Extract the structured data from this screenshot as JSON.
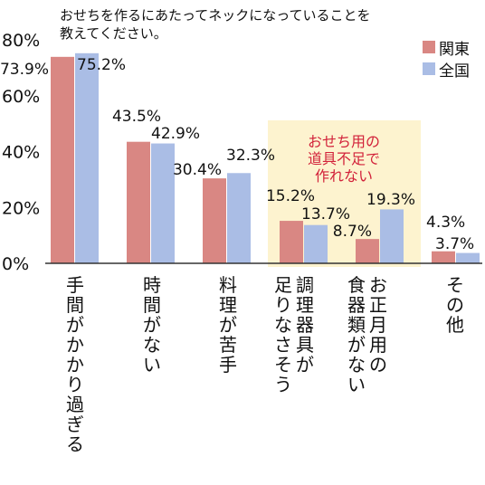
{
  "chart_data": {
    "type": "bar",
    "title": "おせちを作るにあたってネックになっていることを教えてください。",
    "title_lines": [
      "おせちを作るにあたってネックになっていることを",
      "教えてください。"
    ],
    "ylim": [
      0,
      80
    ],
    "yticks": [
      "0%",
      "20%",
      "40%",
      "60%",
      "80%"
    ],
    "grid": false,
    "legend_position": "top-right",
    "categories": [
      "手間がかかり過ぎる",
      "時間がない",
      "料理が苦手",
      "調理器具が足りなさそう",
      "お正月用の食器類がない",
      "その他"
    ],
    "category_label_columns": [
      [
        "手間がかかり過ぎる"
      ],
      [
        "時間がない"
      ],
      [
        "料理が苦手"
      ],
      [
        "調理器具が",
        "足りなさそう"
      ],
      [
        "お正月用の",
        "食器類がない"
      ],
      [
        "その他"
      ]
    ],
    "series": [
      {
        "name": "関東",
        "color": "#d98783",
        "values": [
          73.9,
          43.5,
          30.4,
          15.2,
          8.7,
          4.3
        ],
        "labels": [
          "73.9%",
          "43.5%",
          "30.4%",
          "15.2%",
          "8.7%",
          "4.3%"
        ]
      },
      {
        "name": "全国",
        "color": "#aabde5",
        "values": [
          75.2,
          42.9,
          32.3,
          13.7,
          19.3,
          3.7
        ],
        "labels": [
          "75.2%",
          "42.9%",
          "32.3%",
          "13.7%",
          "19.3%",
          "3.7%"
        ]
      }
    ],
    "annotation": {
      "lines": [
        "おせち用の",
        "道具不足で",
        "作れない"
      ],
      "color": "#d2223a",
      "background": "#fdf3cf",
      "applies_to": [
        "調理器具が足りなさそう",
        "お正月用の食器類がない"
      ]
    }
  }
}
